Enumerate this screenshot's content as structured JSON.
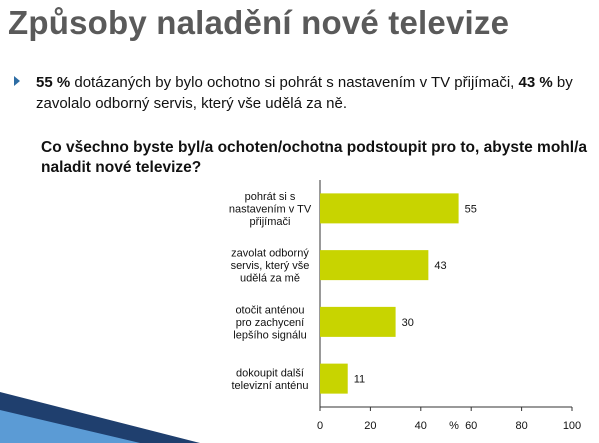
{
  "slide": {
    "title": "Způsoby naladění nové televize",
    "bullet": {
      "pct1": "55 %",
      "text1": " dotázaných by bylo ochotno si pohrát s nastavením v TV přijímači, ",
      "pct2": "43 %",
      "text2": " by zavolalo odborný servis, který vše udělá za ně."
    },
    "question": "Co všechno byste byl/a ochoten/ochotna podstoupit pro to, abyste mohl/a naladit nové televize?"
  },
  "colors": {
    "bar": "#c8d400",
    "title": "#5a5a5a",
    "bullet": "#2e6da4",
    "corner_dark": "#1f3f6e",
    "corner_light": "#5b9bd5"
  },
  "chart_data": {
    "type": "bar",
    "orientation": "horizontal",
    "categories": [
      [
        "pohrát si s",
        "nastavením v TV",
        "přijímači"
      ],
      [
        "zavolat odborný",
        "servis, který vše",
        "udělá za mě"
      ],
      [
        "otočit anténou",
        "pro zachycení",
        "lepšího signálu"
      ],
      [
        "dokoupit další",
        "televizní anténu"
      ]
    ],
    "values": [
      55,
      43,
      30,
      11
    ],
    "xlim": [
      0,
      100
    ],
    "xticks": [
      0,
      20,
      40,
      60,
      80,
      100
    ],
    "xlabel": "%",
    "grid": false
  }
}
